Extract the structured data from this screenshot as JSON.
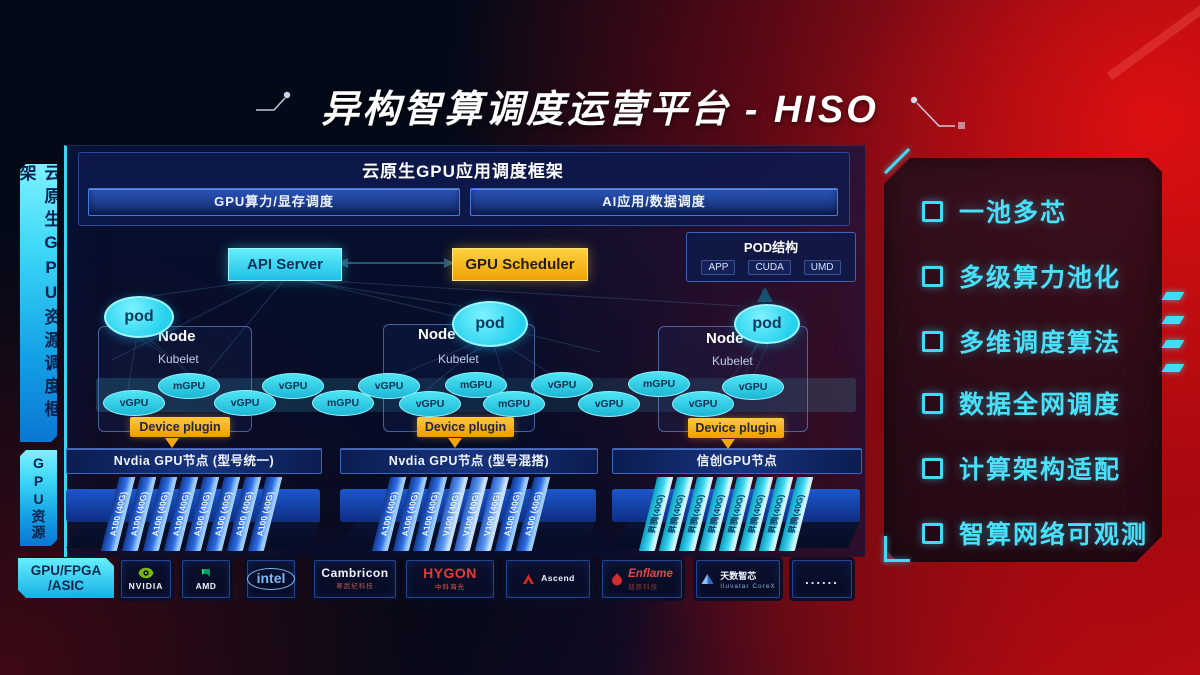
{
  "title": "异构智算调度运营平台 - HISO",
  "sidebar": {
    "scheduling_label": "云原生GPU资源调度框架",
    "resource_label": "GPU资源"
  },
  "framework": {
    "title": "云原生GPU应用调度框架",
    "left_bar": "GPU算力/显存调度",
    "right_bar": "AI应用/数据调度"
  },
  "control": {
    "api_server": "API Server",
    "gpu_scheduler": "GPU Scheduler",
    "pod_struct": {
      "title": "POD结构",
      "items": [
        "APP",
        "CUDA",
        "UMD"
      ]
    }
  },
  "nodes": [
    {
      "pod": "pod",
      "name": "Node",
      "kubelet": "Kubelet",
      "device_plugin": "Device plugin"
    },
    {
      "pod": "pod",
      "name": "Node",
      "kubelet": "Kubelet",
      "device_plugin": "Device plugin"
    },
    {
      "pod": "pod",
      "name": "Node",
      "kubelet": "Kubelet",
      "device_plugin": "Device plugin"
    }
  ],
  "gpu_ellipse_labels": [
    "vGPU",
    "mGPU",
    "vGPU",
    "vGPU",
    "mGPU",
    "vGPU",
    "vGPU",
    "mGPU",
    "mGPU",
    "vGPU",
    "vGPU",
    "mGPU",
    "vGPU",
    "vGPU"
  ],
  "gpu_groups": [
    {
      "header": "Nvdia GPU节点 (型号统一)",
      "cards": [
        "A100 (40G)",
        "A100 (40G)",
        "A100 (40G)",
        "A100 (40G)",
        "A100 (40G)",
        "A100 (40G)",
        "A100 (40G)",
        "A100 (40G)"
      ],
      "card_types": [
        "a100",
        "a100",
        "a100",
        "a100",
        "a100",
        "a100",
        "a100",
        "a100"
      ]
    },
    {
      "header": "Nvdia GPU节点 (型号混搭)",
      "cards": [
        "A100 (40G)",
        "A100 (40G)",
        "A100 (40G)",
        "V100 (40G)",
        "V100 (40G)",
        "V100 (40G)",
        "A100 (40G)",
        "A100 (40G)"
      ],
      "card_types": [
        "a100",
        "a100",
        "a100",
        "v100",
        "v100",
        "v100",
        "a100",
        "a100"
      ]
    },
    {
      "header": "信创GPU节点",
      "cards": [
        "昇腾(40G)",
        "昇腾(40G)",
        "昇腾(40G)",
        "昇腾(40G)",
        "昇腾(40G)",
        "昇腾(40G)",
        "昇腾(40G)",
        "昇腾(40G)"
      ],
      "card_types": [
        "ascend",
        "ascend",
        "ascend",
        "ascend",
        "ascend",
        "ascend",
        "ascend",
        "ascend"
      ]
    }
  ],
  "vendor_bar": {
    "category_line1": "GPU/FPGA",
    "category_line2": "/ASIC",
    "logos": [
      {
        "id": "nvidia",
        "text": "NVIDIA"
      },
      {
        "id": "amd",
        "text": "AMD"
      },
      {
        "id": "intel",
        "text": "intel"
      },
      {
        "id": "cambricon",
        "text": "Cambricon",
        "subtext": "寒武纪科技"
      },
      {
        "id": "hygon",
        "text": "HYGON",
        "subtext": "中科海光"
      },
      {
        "id": "ascend",
        "text": "Ascend"
      },
      {
        "id": "enflame",
        "text": "Enflame",
        "subtext": "燧原科技"
      },
      {
        "id": "iluvatar",
        "text": "天数智芯",
        "subtext": "Iluvatar CoreX"
      },
      {
        "id": "more",
        "text": "......"
      }
    ]
  },
  "features": [
    "一池多芯",
    "多级算力池化",
    "多维调度算法",
    "数据全网调度",
    "计算架构适配",
    "智算网络可观测"
  ],
  "colors": {
    "accent_cyan": "#3fdcf6",
    "accent_yellow": "#f4ad0c",
    "card_blue": "#2f6fe4",
    "card_cyan": "#3fd9f0",
    "red": "#c00d12"
  }
}
